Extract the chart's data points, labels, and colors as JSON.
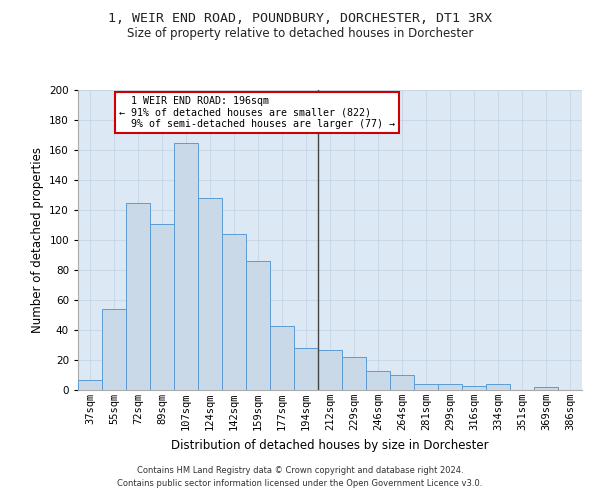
{
  "title": "1, WEIR END ROAD, POUNDBURY, DORCHESTER, DT1 3RX",
  "subtitle": "Size of property relative to detached houses in Dorchester",
  "xlabel": "Distribution of detached houses by size in Dorchester",
  "ylabel": "Number of detached properties",
  "categories": [
    "37sqm",
    "55sqm",
    "72sqm",
    "89sqm",
    "107sqm",
    "124sqm",
    "142sqm",
    "159sqm",
    "177sqm",
    "194sqm",
    "212sqm",
    "229sqm",
    "246sqm",
    "264sqm",
    "281sqm",
    "299sqm",
    "316sqm",
    "334sqm",
    "351sqm",
    "369sqm",
    "386sqm"
  ],
  "values": [
    7,
    54,
    125,
    111,
    165,
    128,
    104,
    86,
    43,
    28,
    27,
    22,
    13,
    10,
    4,
    4,
    3,
    4,
    0,
    2,
    0
  ],
  "bar_color": "#c9d9e8",
  "bar_edge_color": "#5b9bd5",
  "vline_x": 9.5,
  "vline_color": "#444444",
  "annotation_text": "  1 WEIR END ROAD: 196sqm  \n← 91% of detached houses are smaller (822)\n  9% of semi-detached houses are larger (77) →",
  "annotation_box_color": "#ffffff",
  "annotation_box_edge_color": "#cc0000",
  "ylim": [
    0,
    200
  ],
  "yticks": [
    0,
    20,
    40,
    60,
    80,
    100,
    120,
    140,
    160,
    180,
    200
  ],
  "grid_color": "#c8d8e8",
  "background_color": "#dce9f5",
  "footer_text": "Contains HM Land Registry data © Crown copyright and database right 2024.\nContains public sector information licensed under the Open Government Licence v3.0.",
  "title_fontsize": 9.5,
  "subtitle_fontsize": 8.5,
  "xlabel_fontsize": 8.5,
  "ylabel_fontsize": 8.5,
  "tick_fontsize": 7.5,
  "footer_fontsize": 6.0
}
